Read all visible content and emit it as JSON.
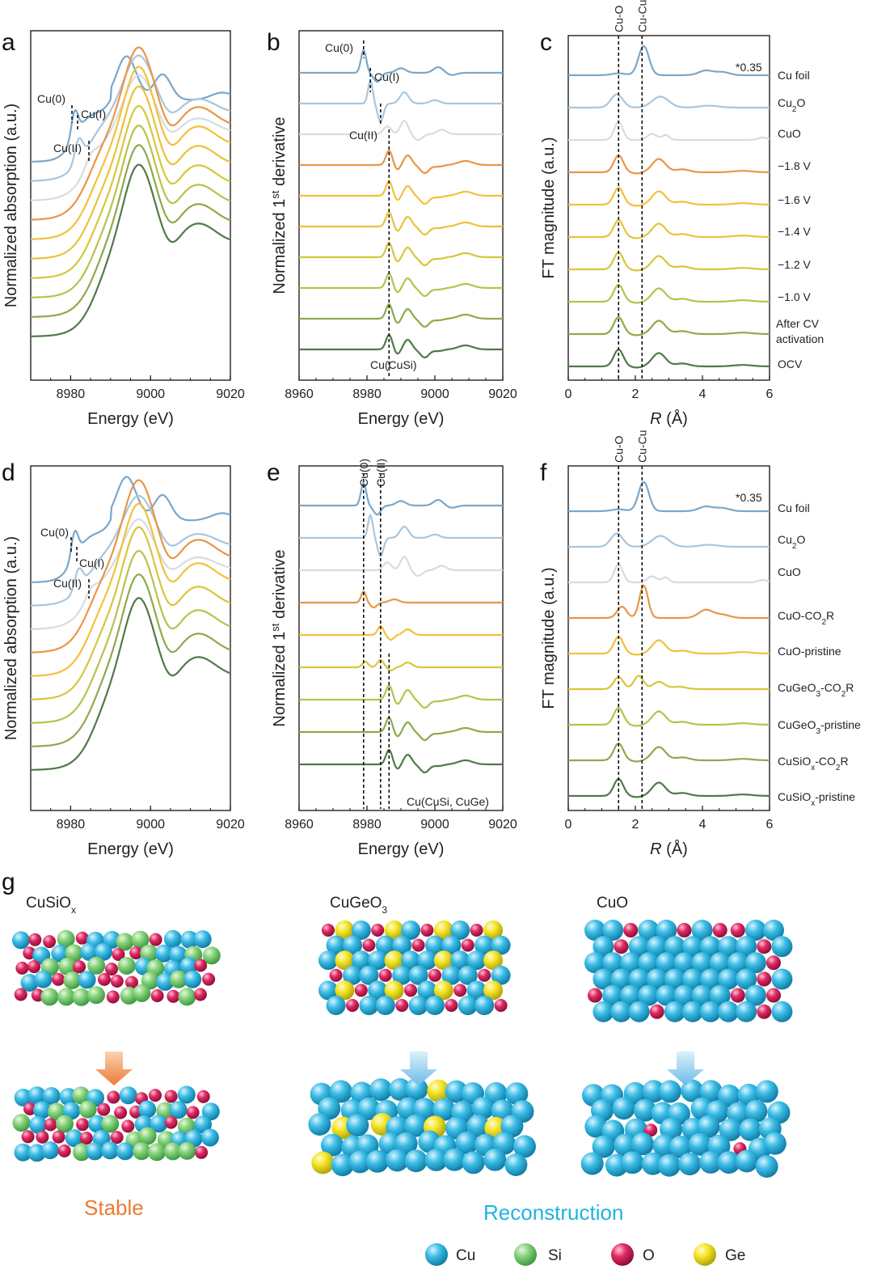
{
  "panel_letters": [
    "a",
    "b",
    "c",
    "d",
    "e",
    "f",
    "g"
  ],
  "series_colors": [
    "#7ba7c9",
    "#a8c6dd",
    "#d4dde4",
    "#e89648",
    "#f2c13a",
    "#e9c23a",
    "#d8c63a",
    "#b8c24a",
    "#8daa4a",
    "#6e9550",
    "#4f7a48"
  ],
  "chart_data": [
    {
      "panel": "a",
      "type": "line",
      "xlabel": "Energy (eV)",
      "ylabel": "Normalized absorption (a.u.)",
      "xlim": [
        8970,
        9020
      ],
      "x_ticks": [
        "8980",
        "9000",
        "9020"
      ],
      "annotations": [
        "Cu(0)",
        "Cu(I)",
        "Cu(II)"
      ],
      "series_count": 10,
      "series_colors": [
        "#7ba7c9",
        "#a8c6dd",
        "#d4dde4",
        "#e89648",
        "#f2c13a",
        "#e9c23a",
        "#d8c63a",
        "#b8c24a",
        "#8daa4a",
        "#4f7a48"
      ]
    },
    {
      "panel": "b",
      "type": "line",
      "xlabel": "Energy (eV)",
      "ylabel_pre": "Normalized 1",
      "ylabel_sup": "st",
      "ylabel_post": " derivative",
      "xlim": [
        8960,
        9020
      ],
      "x_ticks": [
        "8960",
        "8980",
        "9000",
        "9020"
      ],
      "annotations": [
        "Cu(0)",
        "Cu(I)",
        "Cu(II)",
        "Cu(CuSi)"
      ],
      "reference_lines_eV": [
        8979,
        8981,
        8984,
        8986.5
      ],
      "series_count": 10
    },
    {
      "panel": "c",
      "type": "line",
      "xlabel_italic": "R",
      "xlabel_rest": " (Å)",
      "ylabel": "FT magnitude (a.u.)",
      "xlim": [
        0,
        6
      ],
      "x_ticks": [
        "0",
        "2",
        "4",
        "6"
      ],
      "top_labels": [
        "Cu-O",
        "Cu-Cu"
      ],
      "reference_lines_A": [
        1.5,
        2.2
      ],
      "scale_note": "*0.35",
      "series": [
        {
          "name": "Cu foil"
        },
        {
          "name": "Cu2O"
        },
        {
          "name": "CuO"
        },
        {
          "name": "−1.8 V"
        },
        {
          "name": "−1.6 V"
        },
        {
          "name": "−1.4 V"
        },
        {
          "name": "−1.2 V"
        },
        {
          "name": "−1.0 V"
        },
        {
          "name": "After CV activation"
        },
        {
          "name": "OCV"
        }
      ]
    },
    {
      "panel": "d",
      "type": "line",
      "xlabel": "Energy (eV)",
      "ylabel": "Normalized absorption (a.u.)",
      "xlim": [
        8970,
        9020
      ],
      "x_ticks": [
        "8980",
        "9000",
        "9020"
      ],
      "annotations": [
        "Cu(0)",
        "Cu(I)",
        "Cu(II)"
      ],
      "series_count": 9
    },
    {
      "panel": "e",
      "type": "line",
      "xlabel": "Energy (eV)",
      "ylabel_pre": "Normalized 1",
      "ylabel_sup": "st",
      "ylabel_post": " derivative",
      "xlim": [
        8960,
        9020
      ],
      "x_ticks": [
        "8960",
        "8980",
        "9000",
        "9020"
      ],
      "top_labels": [
        "Cu(0)",
        "Cu(II)"
      ],
      "annotations": [
        "Cu(CuSi, CuGe)"
      ],
      "reference_lines_eV": [
        8979,
        8984,
        8986.5
      ],
      "series_count": 9
    },
    {
      "panel": "f",
      "type": "line",
      "xlabel_italic": "R",
      "xlabel_rest": " (Å)",
      "ylabel": "FT magnitude (a.u.)",
      "xlim": [
        0,
        6
      ],
      "x_ticks": [
        "0",
        "2",
        "4",
        "6"
      ],
      "top_labels": [
        "Cu-O",
        "Cu-Cu"
      ],
      "reference_lines_A": [
        1.5,
        2.2
      ],
      "scale_note": "*0.35",
      "series": [
        {
          "name": "Cu foil"
        },
        {
          "name": "Cu2O"
        },
        {
          "name": "CuO"
        },
        {
          "name": "CuO-CO2R"
        },
        {
          "name": "CuO-pristine"
        },
        {
          "name": "CuGeO3-CO2R"
        },
        {
          "name": "CuGeO3-pristine"
        },
        {
          "name": "CuSiOx-CO2R"
        },
        {
          "name": "CuSiOx-pristine"
        }
      ]
    }
  ],
  "panel_g": {
    "materials": [
      {
        "name": "CuSiOx",
        "outcome": "Stable",
        "outcome_color": "#ec7a32",
        "arrow_color": "#ec7a32"
      },
      {
        "name": "CuGeO3",
        "arrow_color": "#7cc3ec"
      },
      {
        "name": "CuO",
        "arrow_color": "#7cc3ec"
      }
    ],
    "outcome_reconstruction": "Reconstruction",
    "outcome_reconstruction_color": "#1fb3e0",
    "legend": [
      {
        "label": "Cu",
        "color": "#2fb7e0"
      },
      {
        "label": "Si",
        "color": "#79cf72"
      },
      {
        "label": "O",
        "color": "#dc1f5c"
      },
      {
        "label": "Ge",
        "color": "#f2e21d"
      }
    ]
  }
}
